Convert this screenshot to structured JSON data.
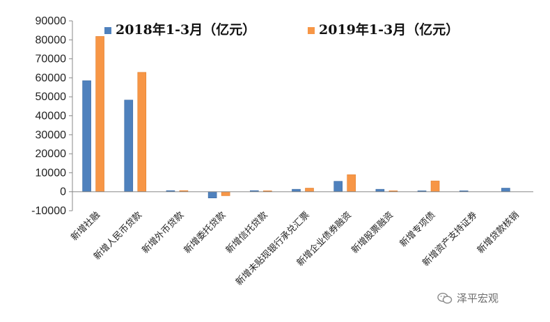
{
  "chart_data": {
    "type": "bar",
    "categories": [
      "新增社融",
      "新增人民币贷款",
      "新增外币贷款",
      "新增委托贷款",
      "新增信托贷款",
      "新增未贴现银行承兑汇票",
      "新增企业债券融资",
      "新增股票融资",
      "新增专项债",
      "新增资产支持证券",
      "新增贷款核销"
    ],
    "series": [
      {
        "name": "2018年1-3月（亿元）",
        "color": "#4f81bd",
        "values": [
          58500,
          48300,
          600,
          -3300,
          600,
          1300,
          5500,
          1300,
          500,
          500,
          1900
        ]
      },
      {
        "name": "2019年1-3月（亿元）",
        "color": "#f79646",
        "values": [
          81800,
          62900,
          600,
          -2100,
          500,
          1900,
          9000,
          500,
          5700,
          0,
          0
        ]
      }
    ],
    "yticks": [
      "-10000",
      "0",
      "10000",
      "20000",
      "30000",
      "40000",
      "50000",
      "60000",
      "70000",
      "80000",
      "90000"
    ],
    "ylim": [
      -10000,
      90000
    ],
    "grid": false,
    "legend": "top"
  },
  "watermark": {
    "text": "泽平宏观",
    "icon": "wechat-icon"
  }
}
